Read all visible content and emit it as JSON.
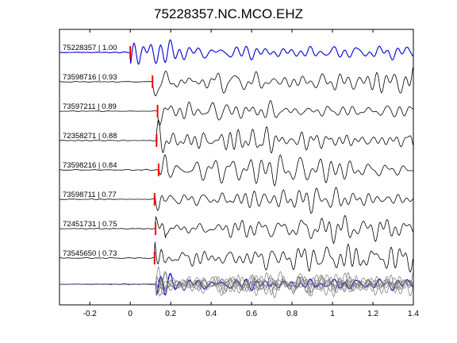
{
  "title": "75228357.NC.MCO.EHZ",
  "chart_data": {
    "type": "line",
    "title": "75228357.NC.MCO.EHZ",
    "xlim": [
      -0.35,
      1.4
    ],
    "xticks": [
      -0.2,
      0,
      0.2,
      0.4,
      0.6,
      0.8,
      1,
      1.2,
      1.4
    ],
    "xtick_labels": [
      "-0.2",
      "0",
      "0.2",
      "0.4",
      "0.6",
      "0.8",
      "1",
      "1.2",
      "1.4"
    ],
    "grid": false,
    "colors": {
      "reference": "#0000cc",
      "trace": "#000000",
      "pick": "#ff0000",
      "overlay": "#777777"
    },
    "series": [
      {
        "label": "75228357 | 1.00",
        "pick_time": 0.0,
        "reference": true
      },
      {
        "label": "73598716 | 0.93",
        "pick_time": 0.11
      },
      {
        "label": "73597211 | 0.89",
        "pick_time": 0.135
      },
      {
        "label": "72358271 | 0.88",
        "pick_time": 0.13
      },
      {
        "label": "73598216 | 0.84",
        "pick_time": 0.14
      },
      {
        "label": "73598711 | 0.77",
        "pick_time": 0.12
      },
      {
        "label": "72451731 | 0.75",
        "pick_time": 0.125
      },
      {
        "label": "73545650 | 0.73",
        "pick_time": 0.12
      }
    ],
    "stack": {
      "overlay": true
    }
  }
}
